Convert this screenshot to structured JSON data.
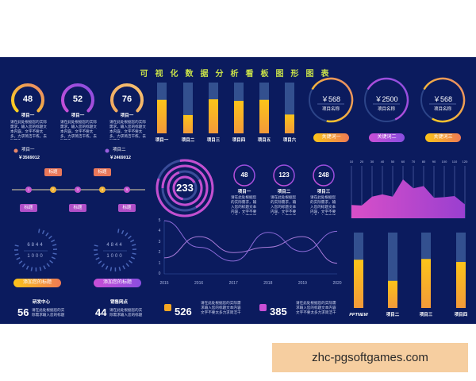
{
  "title": "可视化数据分析看板图形图表",
  "placeholder_text": "请在此处根据您的实际需求，输入您的标题文本内容，文字不要太多，力求简洁干练，去除繁杂。",
  "colors": {
    "background": "#0b1b5e",
    "title": "#c9e24a",
    "orange": "#f5a623",
    "yellow": "#fcd21c",
    "purple": "#c94fd6",
    "track": "#33508f"
  },
  "gauges": [
    {
      "value": "48",
      "label": "项目一",
      "color": "yellow-orange"
    },
    {
      "value": "52",
      "label": "项目一",
      "color": "purple"
    },
    {
      "value": "76",
      "label": "项目一",
      "color": "orange"
    }
  ],
  "totals": [
    {
      "label": "项目一",
      "amount": "￥3569012"
    },
    {
      "label": "项目二",
      "amount": "￥2469012"
    }
  ],
  "timeline": {
    "steps": [
      "1",
      "2",
      "3",
      "4",
      "5"
    ],
    "tags_above": [
      "标题",
      "标题"
    ],
    "tags_below": [
      "标题",
      "标题",
      "标题"
    ]
  },
  "dials": [
    {
      "top": "6844",
      "bottom": "1000",
      "button": "添加您的标题"
    },
    {
      "top": "4844",
      "bottom": "1000",
      "button": "添加您的标题"
    }
  ],
  "stats_left": [
    {
      "value": "56",
      "title": "研发中心",
      "text": "请在此处根据您的实际需求输入您的标题文本内容"
    },
    {
      "value": "44",
      "title": "销售网点",
      "text": "请在此处根据您的实际需求输入您的标题文本内容"
    }
  ],
  "stats_mid": [
    {
      "value": "526",
      "text": "请在此处根据您的实际需求输入您的标题文本内容文字不要太多力求简洁干"
    },
    {
      "value": "385",
      "text": "请在此处根据您的实际需求输入您的标题文本内容文字不要太多力求简洁干"
    }
  ],
  "rings": [
    {
      "value": "￥568",
      "label": "项目名称",
      "button": "关键词一",
      "fraction": 0.7
    },
    {
      "value": "￥2500",
      "label": "项目名称",
      "button": "关键词二",
      "fraction": 0.6
    },
    {
      "value": "￥568",
      "label": "项目名称",
      "button": "关键词三",
      "fraction": 0.75
    }
  ],
  "big_ring": {
    "value": "233"
  },
  "small_circles": [
    {
      "value": "48",
      "label": "项目一"
    },
    {
      "value": "123",
      "label": "项目二"
    },
    {
      "value": "248",
      "label": "项目三"
    }
  ],
  "chart_data": [
    {
      "type": "bar",
      "categories": [
        "项目一",
        "项目二",
        "项目三",
        "项目四",
        "项目五",
        "项目六"
      ],
      "values": [
        0.66,
        0.36,
        0.67,
        0.64,
        0.66,
        0.37
      ],
      "ylim": [
        0,
        1
      ]
    },
    {
      "type": "line",
      "x": [
        "2015",
        "2016",
        "2017",
        "2018",
        "2019",
        "2020"
      ],
      "yticks": [
        "0",
        "1",
        "2",
        "3",
        "4",
        "5"
      ],
      "ylim": [
        0,
        5
      ],
      "grid": false,
      "series": [
        {
          "values": [
            1.5,
            3.5,
            2,
            2.5,
            3.5,
            1
          ]
        },
        {
          "values": [
            5,
            2.5,
            1.2,
            3.9,
            2.1,
            4
          ]
        }
      ]
    },
    {
      "type": "area",
      "x": [
        "10",
        "20",
        "30",
        "40",
        "50",
        "60",
        "70",
        "80",
        "90",
        "100",
        "110",
        "120"
      ],
      "values": [
        24,
        23,
        39,
        43,
        39,
        70,
        54,
        58,
        37,
        38,
        40,
        25
      ],
      "ylim": [
        0,
        100
      ]
    },
    {
      "type": "bar",
      "categories": [
        "PPTNEW",
        "项目二",
        "项目三",
        "项目四"
      ],
      "values": [
        0.64,
        0.36,
        0.65,
        0.61
      ],
      "ylim": [
        0,
        1
      ]
    }
  ],
  "watermark": "zhc-pgsoftgames.com"
}
